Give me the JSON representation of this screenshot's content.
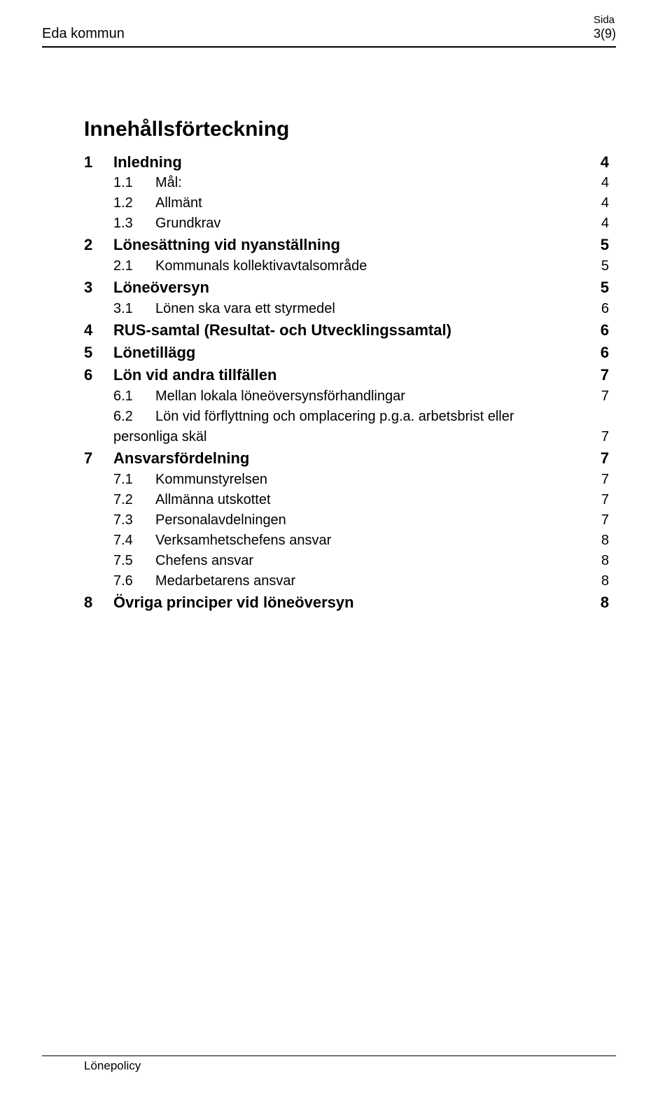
{
  "header": {
    "org": "Eda kommun",
    "page_label": "Sida",
    "page_value": "3(9)"
  },
  "title": "Innehållsförteckning",
  "toc": [
    {
      "level": 1,
      "num": "1",
      "text": "Inledning",
      "page": "4"
    },
    {
      "level": 2,
      "num": "1.1",
      "text": "Mål:",
      "page": "4"
    },
    {
      "level": 2,
      "num": "1.2",
      "text": "Allmänt",
      "page": "4"
    },
    {
      "level": 2,
      "num": "1.3",
      "text": "Grundkrav",
      "page": "4"
    },
    {
      "level": 1,
      "num": "2",
      "text": "Lönesättning vid nyanställning",
      "page": "5"
    },
    {
      "level": 2,
      "num": "2.1",
      "text": "Kommunals kollektivavtalsområde",
      "page": "5"
    },
    {
      "level": 1,
      "num": "3",
      "text": "Löneöversyn",
      "page": "5"
    },
    {
      "level": 2,
      "num": "3.1",
      "text": "Lönen ska vara ett styrmedel",
      "page": "6"
    },
    {
      "level": 1,
      "num": "4",
      "text": "RUS-samtal (Resultat- och Utvecklingssamtal)",
      "page": "6"
    },
    {
      "level": 1,
      "num": "5",
      "text": "Lönetillägg",
      "page": "6"
    },
    {
      "level": 1,
      "num": "6",
      "text": "Lön vid andra tillfällen",
      "page": "7"
    },
    {
      "level": 2,
      "num": "6.1",
      "text": "Mellan lokala löneöversynsförhandlingar",
      "page": "7"
    },
    {
      "level": 2,
      "num": "6.2",
      "text": "Lön vid förflyttning och omplacering p.g.a. arbetsbrist eller personliga skäl",
      "page": "7"
    },
    {
      "level": 1,
      "num": "7",
      "text": "Ansvarsfördelning",
      "page": "7"
    },
    {
      "level": 2,
      "num": "7.1",
      "text": "Kommunstyrelsen",
      "page": "7"
    },
    {
      "level": 2,
      "num": "7.2",
      "text": "Allmänna utskottet",
      "page": "7"
    },
    {
      "level": 2,
      "num": "7.3",
      "text": "Personalavdelningen",
      "page": "7"
    },
    {
      "level": 2,
      "num": "7.4",
      "text": "Verksamhetschefens ansvar",
      "page": "8"
    },
    {
      "level": 2,
      "num": "7.5",
      "text": "Chefens ansvar",
      "page": "8"
    },
    {
      "level": 2,
      "num": "7.6",
      "text": "Medarbetarens ansvar",
      "page": "8"
    },
    {
      "level": 1,
      "num": "8",
      "text": "Övriga principer vid löneöversyn",
      "page": "8"
    }
  ],
  "footer": {
    "text": "Lönepolicy"
  }
}
